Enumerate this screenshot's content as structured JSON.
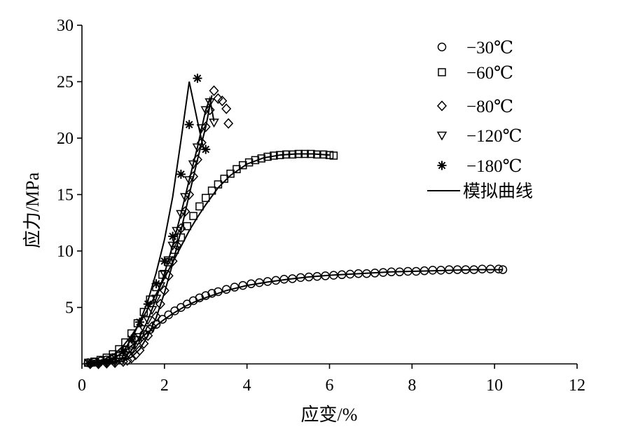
{
  "chart_data": {
    "type": "scatter",
    "title": "",
    "xlabel": "应变/%",
    "ylabel": "应力/MPa",
    "xlim": [
      0,
      12
    ],
    "ylim": [
      0,
      30
    ],
    "xticks": [
      "0",
      "2",
      "4",
      "6",
      "8",
      "10",
      "12"
    ],
    "yticks": [
      "5",
      "10",
      "15",
      "20",
      "25",
      "30"
    ],
    "grid": false,
    "legend_position": "top-right",
    "series": [
      {
        "name": "−30℃",
        "marker": "circle",
        "x": [
          0.15,
          0.3,
          0.45,
          0.6,
          0.75,
          0.9,
          1.05,
          1.2,
          1.35,
          1.5,
          1.65,
          1.8,
          1.95,
          2.1,
          2.25,
          2.4,
          2.55,
          2.7,
          2.85,
          3.0,
          3.15,
          3.3,
          3.5,
          3.7,
          3.9,
          4.1,
          4.3,
          4.5,
          4.7,
          4.9,
          5.1,
          5.3,
          5.5,
          5.7,
          5.9,
          6.1,
          6.3,
          6.5,
          6.7,
          6.9,
          7.1,
          7.3,
          7.5,
          7.7,
          7.9,
          8.1,
          8.3,
          8.5,
          8.7,
          8.9,
          9.1,
          9.3,
          9.5,
          9.7,
          9.9,
          10.1,
          10.2
        ],
        "y": [
          0.1,
          0.15,
          0.25,
          0.35,
          0.55,
          0.8,
          1.2,
          1.65,
          2.1,
          2.6,
          3.05,
          3.5,
          3.95,
          4.35,
          4.7,
          5.0,
          5.3,
          5.6,
          5.85,
          6.05,
          6.25,
          6.4,
          6.6,
          6.8,
          6.95,
          7.1,
          7.2,
          7.3,
          7.4,
          7.5,
          7.55,
          7.65,
          7.7,
          7.75,
          7.8,
          7.85,
          7.9,
          7.95,
          8.0,
          8.0,
          8.05,
          8.1,
          8.15,
          8.15,
          8.2,
          8.2,
          8.25,
          8.3,
          8.3,
          8.35,
          8.35,
          8.35,
          8.35,
          8.4,
          8.4,
          8.4,
          8.35
        ]
      },
      {
        "name": "−60℃",
        "marker": "square",
        "x": [
          0.15,
          0.3,
          0.45,
          0.6,
          0.75,
          0.9,
          1.05,
          1.2,
          1.35,
          1.5,
          1.65,
          1.8,
          1.95,
          2.1,
          2.25,
          2.4,
          2.55,
          2.7,
          2.85,
          3.0,
          3.15,
          3.3,
          3.45,
          3.6,
          3.75,
          3.9,
          4.05,
          4.2,
          4.35,
          4.5,
          4.65,
          4.8,
          4.95,
          5.1,
          5.25,
          5.4,
          5.55,
          5.7,
          5.85,
          6.0,
          6.1
        ],
        "y": [
          0.1,
          0.2,
          0.35,
          0.55,
          0.85,
          1.3,
          1.9,
          2.7,
          3.6,
          4.6,
          5.7,
          6.8,
          7.9,
          9.0,
          10.1,
          11.2,
          12.2,
          13.1,
          13.95,
          14.7,
          15.35,
          15.9,
          16.4,
          16.85,
          17.25,
          17.6,
          17.85,
          18.05,
          18.2,
          18.35,
          18.45,
          18.5,
          18.55,
          18.55,
          18.6,
          18.6,
          18.6,
          18.55,
          18.55,
          18.5,
          18.45
        ]
      },
      {
        "name": "−80℃",
        "marker": "diamond",
        "x": [
          0.2,
          0.4,
          0.6,
          0.8,
          1.0,
          1.1,
          1.2,
          1.3,
          1.4,
          1.5,
          1.6,
          1.7,
          1.8,
          1.9,
          2.0,
          2.1,
          2.2,
          2.3,
          2.4,
          2.5,
          2.6,
          2.7,
          2.8,
          2.9,
          3.0,
          3.1,
          3.2,
          3.3,
          3.4,
          3.5,
          3.55
        ],
        "y": [
          0.0,
          0.0,
          0.05,
          0.1,
          0.2,
          0.3,
          0.5,
          0.8,
          1.2,
          1.8,
          2.5,
          3.3,
          4.2,
          5.3,
          6.5,
          7.8,
          9.1,
          10.5,
          12.0,
          13.5,
          15.0,
          16.6,
          18.1,
          19.6,
          21.0,
          22.5,
          24.2,
          23.5,
          23.3,
          22.6,
          21.3
        ]
      },
      {
        "name": "−120℃",
        "marker": "triangle-down",
        "x": [
          0.2,
          0.4,
          0.6,
          0.8,
          1.0,
          1.1,
          1.2,
          1.3,
          1.4,
          1.5,
          1.6,
          1.7,
          1.8,
          1.9,
          2.0,
          2.1,
          2.2,
          2.3,
          2.4,
          2.5,
          2.6,
          2.7,
          2.8,
          2.9,
          3.0,
          3.1,
          3.2
        ],
        "y": [
          0.0,
          0.05,
          0.1,
          0.2,
          0.45,
          0.75,
          1.2,
          1.75,
          2.4,
          3.1,
          3.9,
          4.8,
          5.8,
          6.9,
          8.0,
          9.2,
          10.5,
          11.8,
          13.3,
          14.8,
          16.3,
          17.7,
          19.2,
          20.9,
          22.5,
          23.2,
          21.4
        ]
      },
      {
        "name": "−180℃",
        "marker": "asterisk",
        "x": [
          0.2,
          0.4,
          0.6,
          0.8,
          1.0,
          1.2,
          1.4,
          1.6,
          1.8,
          2.0,
          2.2,
          2.4,
          2.6,
          2.8,
          3.0
        ],
        "y": [
          0.05,
          0.1,
          0.2,
          0.5,
          1.1,
          2.2,
          3.7,
          5.3,
          7.1,
          9.1,
          11.3,
          16.8,
          21.2,
          25.3,
          19.0
        ]
      },
      {
        "name": "模拟曲线",
        "marker": "line"
      }
    ],
    "fitted_curves": [
      {
        "series": "−30℃",
        "x": [
          0.1,
          0.5,
          0.8,
          1.0,
          1.2,
          1.4,
          1.6,
          1.8,
          2.0,
          2.2,
          2.5,
          2.8,
          3.1,
          3.5,
          4.0,
          4.5,
          5.0,
          5.5,
          6.0,
          6.5,
          7.0,
          7.5,
          8.0,
          8.5,
          9.0,
          9.5,
          10.0,
          10.2
        ],
        "y": [
          0.05,
          0.2,
          0.6,
          1.0,
          1.6,
          2.2,
          2.8,
          3.4,
          3.95,
          4.45,
          5.1,
          5.6,
          6.0,
          6.5,
          6.95,
          7.25,
          7.5,
          7.7,
          7.85,
          7.95,
          8.05,
          8.15,
          8.2,
          8.25,
          8.3,
          8.35,
          8.35,
          8.35
        ]
      },
      {
        "series": "−60℃",
        "x": [
          0.1,
          0.5,
          0.8,
          1.0,
          1.2,
          1.4,
          1.6,
          1.8,
          2.0,
          2.2,
          2.4,
          2.6,
          2.8,
          3.0,
          3.3,
          3.6,
          4.0,
          4.4,
          4.8,
          5.2,
          5.6,
          6.0
        ],
        "y": [
          0.05,
          0.3,
          0.9,
          1.6,
          2.5,
          3.6,
          4.9,
          6.2,
          7.6,
          9.0,
          10.4,
          11.8,
          13.0,
          14.1,
          15.6,
          16.7,
          17.7,
          18.25,
          18.5,
          18.6,
          18.6,
          18.5
        ]
      },
      {
        "series": "−80℃",
        "x": [
          0.2,
          0.8,
          1.0,
          1.2,
          1.4,
          1.6,
          1.8,
          2.0,
          2.2,
          2.4,
          2.6,
          2.8,
          3.0,
          3.15
        ],
        "y": [
          0.0,
          0.1,
          0.25,
          0.6,
          1.3,
          2.5,
          4.1,
          6.3,
          8.9,
          11.8,
          15.0,
          18.1,
          21.0,
          23.8
        ]
      },
      {
        "series": "−120℃",
        "x": [
          0.2,
          0.8,
          1.0,
          1.2,
          1.4,
          1.6,
          1.8,
          2.0,
          2.2,
          2.4,
          2.6,
          2.8,
          3.0,
          3.1,
          3.2
        ],
        "y": [
          0.0,
          0.2,
          0.45,
          1.2,
          2.4,
          3.9,
          5.8,
          8.0,
          10.5,
          13.3,
          16.3,
          19.2,
          22.5,
          23.5,
          21.5
        ]
      },
      {
        "series": "−180℃",
        "x": [
          0.2,
          0.6,
          0.8,
          1.0,
          1.2,
          1.4,
          1.6,
          1.8,
          2.0,
          2.2,
          2.4,
          2.6,
          2.8,
          2.95
        ],
        "y": [
          0.05,
          0.2,
          0.5,
          1.1,
          2.2,
          3.7,
          5.6,
          8.1,
          11.0,
          14.8,
          19.8,
          25.0,
          21.5,
          19.0
        ]
      }
    ],
    "style": {
      "axis_color": "#000000",
      "marker_color": "#000000",
      "line_color": "#000000"
    }
  }
}
